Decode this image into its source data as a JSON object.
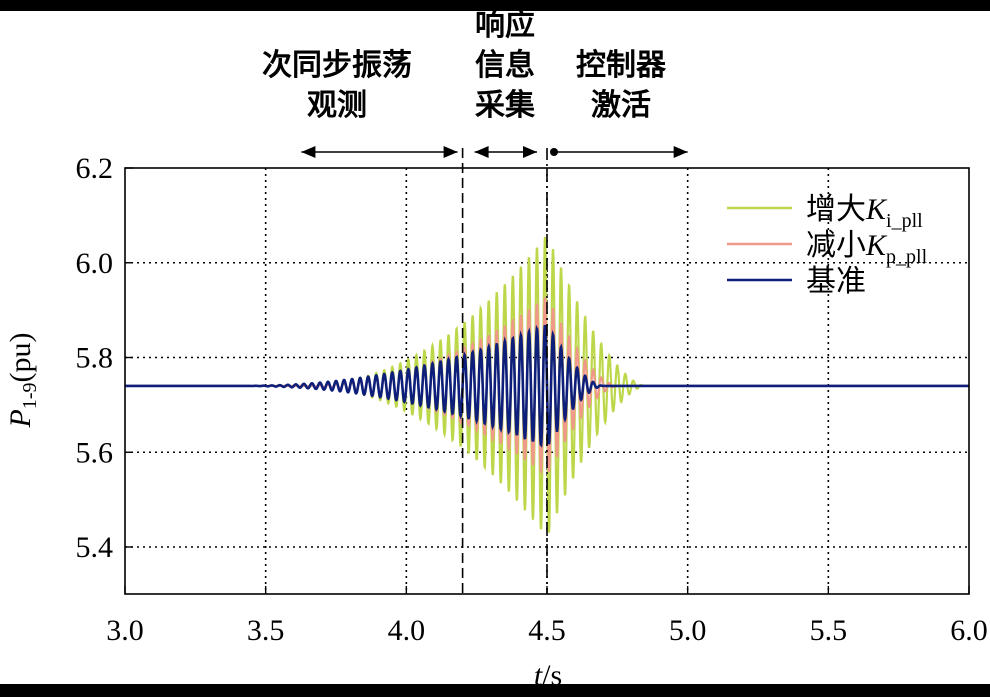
{
  "chart_data": {
    "type": "line",
    "title": "",
    "xlabel": "t/s",
    "ylabel": "P1-9(pu)",
    "ylabel_main": "P",
    "ylabel_sub": "1-9",
    "ylabel_unit": "(pu)",
    "xlim": [
      3.0,
      6.0
    ],
    "ylim": [
      5.3,
      6.2
    ],
    "x_ticks": [
      "3.0",
      "3.5",
      "4.0",
      "4.5",
      "5.0",
      "5.5",
      "6.0"
    ],
    "y_ticks": [
      "6.2",
      "6.0",
      "5.8",
      "5.6",
      "5.4"
    ],
    "grid": "dotted",
    "legend_position": "upper right",
    "baseline": 5.74,
    "series": [
      {
        "name": "增大K_i_pll",
        "label_cn": "增大",
        "label_k": "K",
        "label_sub": "i_pll",
        "color": "#bcd84a",
        "envelope": {
          "start": 3.6,
          "peak_t": 4.5,
          "peak_amp": 0.32,
          "end": 4.85
        }
      },
      {
        "name": "减小K_p_pll",
        "label_cn": "减小",
        "label_k": "K",
        "label_sub": "p_pll",
        "color": "#f0998a",
        "envelope": {
          "start": 3.6,
          "peak_t": 4.5,
          "peak_amp": 0.19,
          "end": 4.75
        }
      },
      {
        "name": "基准",
        "label_cn": "基准",
        "label_k": "",
        "label_sub": "",
        "color": "#0d1f7a",
        "envelope": {
          "start": 3.4,
          "peak_t": 4.5,
          "peak_amp": 0.13,
          "end": 4.7
        }
      }
    ],
    "annotations": [
      {
        "text_lines": [
          "次同步振荡",
          "观测"
        ],
        "x_from": 3.3,
        "x_to": 4.2,
        "arrow": "both"
      },
      {
        "text_lines": [
          "响应",
          "信息",
          "采集"
        ],
        "x_from": 4.2,
        "x_to": 4.5,
        "arrow": "both"
      },
      {
        "text_lines": [
          "控制器",
          "激活"
        ],
        "x_from": 4.5,
        "x_to": 5.0,
        "arrow": "dot-right"
      }
    ],
    "vlines": [
      {
        "x": 4.2,
        "style": "dashed"
      },
      {
        "x": 4.5,
        "style": "dashdot"
      }
    ]
  }
}
